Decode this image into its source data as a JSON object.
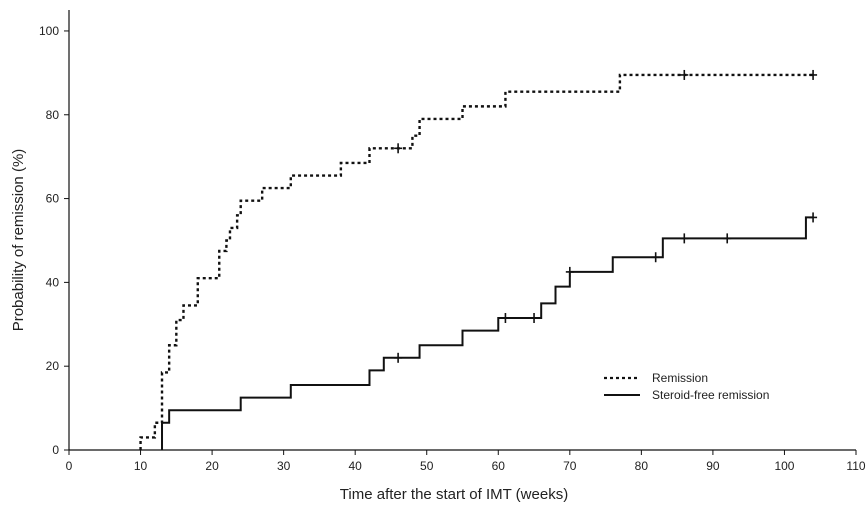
{
  "chart_data": {
    "type": "line",
    "title": "",
    "xlabel": "Time after the start of IMT (weeks)",
    "ylabel": "Probability of remission (%)",
    "xlim": [
      0,
      110
    ],
    "ylim": [
      0,
      105
    ],
    "xticks": [
      0,
      10,
      20,
      30,
      40,
      50,
      60,
      70,
      80,
      90,
      100,
      110
    ],
    "yticks": [
      0,
      20,
      40,
      60,
      80,
      100
    ],
    "grid": false,
    "legend_position": "lower-right",
    "series": [
      {
        "name": "Remission",
        "style": "dotted",
        "color": "#111111",
        "steps": [
          [
            10,
            0
          ],
          [
            10,
            3
          ],
          [
            12,
            3
          ],
          [
            12,
            6.5
          ],
          [
            13,
            6.5
          ],
          [
            13,
            18.5
          ],
          [
            14,
            18.5
          ],
          [
            14,
            25
          ],
          [
            15,
            25
          ],
          [
            15,
            31
          ],
          [
            16,
            31
          ],
          [
            16,
            34.5
          ],
          [
            18,
            34.5
          ],
          [
            18,
            41
          ],
          [
            21,
            41
          ],
          [
            21,
            47.5
          ],
          [
            22,
            47.5
          ],
          [
            22,
            50
          ],
          [
            22.5,
            50
          ],
          [
            22.5,
            53
          ],
          [
            23.5,
            53
          ],
          [
            23.5,
            56
          ],
          [
            24,
            56
          ],
          [
            24,
            59.5
          ],
          [
            27,
            59.5
          ],
          [
            27,
            62.5
          ],
          [
            31,
            62.5
          ],
          [
            31,
            65.5
          ],
          [
            38,
            65.5
          ],
          [
            38,
            68.5
          ],
          [
            42,
            68.5
          ],
          [
            42,
            72
          ],
          [
            48,
            72
          ],
          [
            48,
            75
          ],
          [
            49,
            75
          ],
          [
            49,
            79
          ],
          [
            55,
            79
          ],
          [
            55,
            82
          ],
          [
            61,
            82
          ],
          [
            61,
            85.5
          ],
          [
            77,
            85.5
          ],
          [
            77,
            89.5
          ],
          [
            104,
            89.5
          ]
        ],
        "censored": [
          [
            46,
            72
          ],
          [
            86,
            89.5
          ],
          [
            104,
            89.5
          ]
        ]
      },
      {
        "name": "Steroid-free remission",
        "style": "solid",
        "color": "#111111",
        "steps": [
          [
            13,
            0
          ],
          [
            13,
            6.5
          ],
          [
            14,
            6.5
          ],
          [
            14,
            9.5
          ],
          [
            24,
            9.5
          ],
          [
            24,
            12.5
          ],
          [
            31,
            12.5
          ],
          [
            31,
            15.5
          ],
          [
            42,
            15.5
          ],
          [
            42,
            19
          ],
          [
            44,
            19
          ],
          [
            44,
            22
          ],
          [
            49,
            22
          ],
          [
            49,
            25
          ],
          [
            55,
            25
          ],
          [
            55,
            28.5
          ],
          [
            60,
            28.5
          ],
          [
            60,
            31.5
          ],
          [
            66,
            31.5
          ],
          [
            66,
            35
          ],
          [
            68,
            35
          ],
          [
            68,
            39
          ],
          [
            70,
            39
          ],
          [
            70,
            42.5
          ],
          [
            76,
            42.5
          ],
          [
            76,
            46
          ],
          [
            83,
            46
          ],
          [
            83,
            50.5
          ],
          [
            103,
            50.5
          ],
          [
            103,
            55.5
          ],
          [
            104,
            55.5
          ]
        ],
        "censored": [
          [
            46,
            22
          ],
          [
            61,
            31.5
          ],
          [
            65,
            31.5
          ],
          [
            70,
            42.5
          ],
          [
            82,
            46
          ],
          [
            86,
            50.5
          ],
          [
            92,
            50.5
          ],
          [
            104,
            55.5
          ]
        ]
      }
    ]
  }
}
